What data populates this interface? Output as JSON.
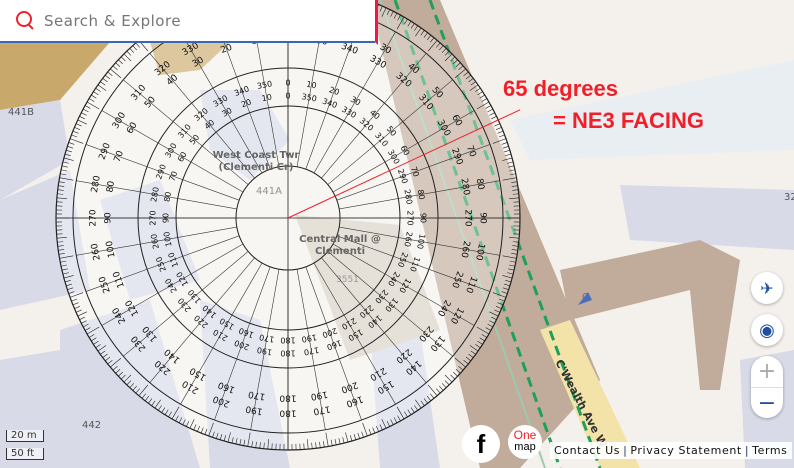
{
  "search": {
    "placeholder": "Search & Explore"
  },
  "map_labels": {
    "building_441b": "441B",
    "building_441a": "441A",
    "building_442": "442",
    "west_coast": "West Coast Twr (Clementi Cr)",
    "central_mall": "Central Mall @ Clementi",
    "central_mall_no": "3551",
    "road": "C'Wealth Ave W",
    "right_building": "32",
    "marker_c": "C"
  },
  "annotation": {
    "line1": "65 degrees",
    "line2": "= NE3 FACING"
  },
  "protractor": {
    "reading_degrees": 65,
    "outer_labels": [
      0,
      10,
      20,
      30,
      40,
      50,
      60,
      70,
      80,
      90,
      100,
      110,
      120,
      130,
      140,
      150,
      160,
      170,
      180,
      190,
      200,
      210,
      220,
      230,
      240,
      250,
      260,
      270,
      280,
      290,
      300,
      310,
      320,
      330,
      340,
      350
    ]
  },
  "controls": {
    "zoom_in": "+",
    "zoom_out": "−"
  },
  "scale": {
    "metric": "20 m",
    "imperial": "50 ft"
  },
  "footer": {
    "contact": "Contact Us",
    "privacy": "Privacy Statement",
    "terms": "Terms",
    "separator": "|"
  },
  "brand": {
    "facebook": "f",
    "onemap_top": "One",
    "onemap_bottom": "map"
  },
  "colors": {
    "accent_red": "#f0202a",
    "building": "#d8dae8",
    "rail": "#c1ab9a",
    "rail_line": "#1fa05a",
    "sand": "#c9a96b",
    "background": "#f4f1ec"
  }
}
